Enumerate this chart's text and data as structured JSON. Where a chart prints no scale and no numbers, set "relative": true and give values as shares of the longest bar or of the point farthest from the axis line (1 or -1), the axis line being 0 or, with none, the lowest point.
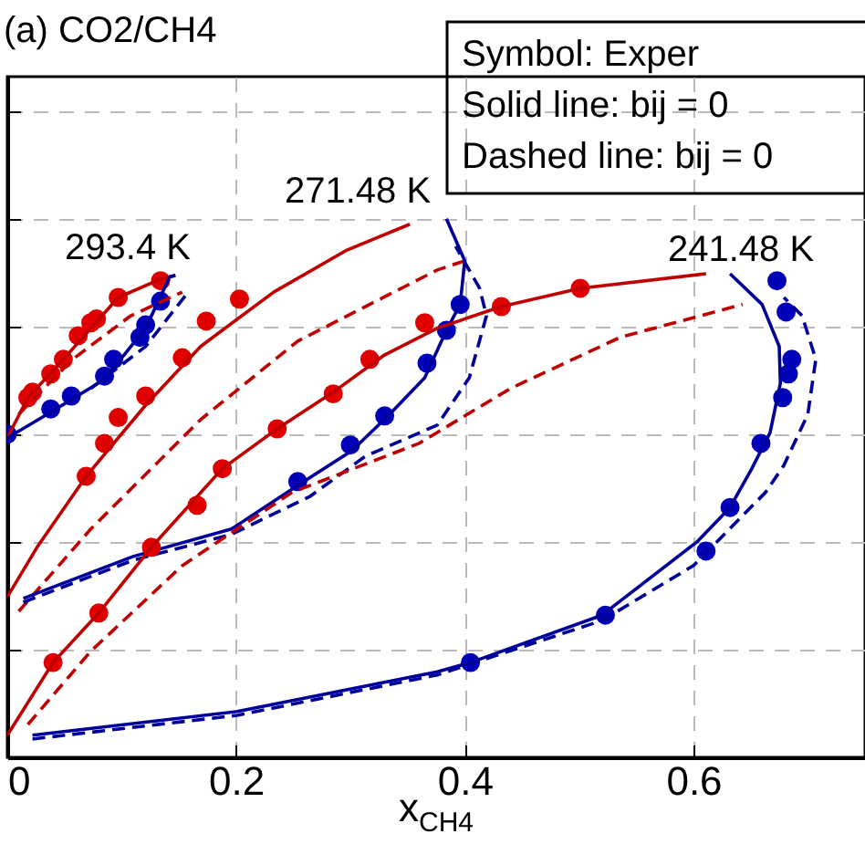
{
  "chart_data": {
    "type": "line",
    "title": "(a) CO2/CH4",
    "xlabel": "x$_{CH4}$",
    "relative": true,
    "grid": true,
    "tick_labels": "x",
    "xlim": [
      0,
      0.75
    ],
    "xticks": [
      0,
      0.2,
      0.4,
      0.6
    ],
    "annotations": [
      "Symbol: Exper",
      "Solid line: bij = 0",
      "Dashed line: bij = 0",
      "293.4 K",
      "271.48 K",
      "241.48 K"
    ],
    "series": [
      {
        "type": "scatter",
        "color": "#e00000",
        "x": [
          0.018,
          0.022,
          0.038,
          0.049,
          0.062,
          0.073,
          0.078,
          0.097,
          0.134
        ],
        "values": [
          0.668,
          0.678,
          0.712,
          0.739,
          0.783,
          0.807,
          0.814,
          0.854,
          0.885
        ]
      },
      {
        "type": "scatter",
        "color": "#0000b8",
        "x": [
          0,
          0.038,
          0.056,
          0.085,
          0.093,
          0.116,
          0.121,
          0.134
        ],
        "values": [
          0.6,
          0.647,
          0.671,
          0.708,
          0.739,
          0.78,
          0.803,
          0.847
        ]
      },
      {
        "line_style": "solid",
        "color": "#c00000",
        "x": [
          0,
          0.018,
          0.049,
          0.097,
          0.134,
          0.147
        ],
        "values": [
          0.593,
          0.668,
          0.739,
          0.854,
          0.888,
          0.895
        ]
      },
      {
        "line_style": "solid",
        "color": "#00009a",
        "x": [
          0,
          0.038,
          0.085,
          0.121,
          0.142,
          0.147
        ],
        "values": [
          0.593,
          0.641,
          0.702,
          0.797,
          0.892,
          0.895
        ]
      },
      {
        "line_style": "dashed",
        "color": "#c00000",
        "x": [
          0.01,
          0.057,
          0.108,
          0.153
        ],
        "values": [
          0.637,
          0.739,
          0.82,
          0.864
        ]
      },
      {
        "line_style": "dashed",
        "color": "#00009a",
        "x": [
          0.073,
          0.121,
          0.156
        ],
        "values": [
          0.685,
          0.763,
          0.858
        ]
      },
      {
        "type": "scatter",
        "color": "#e00000",
        "x": [
          0.069,
          0.085,
          0.097,
          0.121,
          0.153,
          0.174,
          0.203
        ],
        "values": [
          0.522,
          0.583,
          0.631,
          0.671,
          0.742,
          0.81,
          0.851
        ]
      },
      {
        "type": "scatter",
        "color": "#0000b8",
        "x": [
          0.254,
          0.3,
          0.33,
          0.367,
          0.384,
          0.396
        ],
        "values": [
          0.512,
          0.58,
          0.634,
          0.732,
          0.793,
          0.841
        ]
      },
      {
        "line_style": "solid",
        "color": "#c00000",
        "x": [
          0,
          0.026,
          0.069,
          0.121,
          0.169,
          0.233,
          0.297,
          0.352
        ],
        "values": [
          0.298,
          0.39,
          0.522,
          0.654,
          0.763,
          0.864,
          0.942,
          0.99
        ]
      },
      {
        "line_style": "dashed",
        "color": "#c00000",
        "x": [
          0.01,
          0.073,
          0.169,
          0.254,
          0.376,
          0.4
        ],
        "values": [
          0.271,
          0.424,
          0.627,
          0.773,
          0.905,
          0.922
        ]
      },
      {
        "line_style": "solid",
        "color": "#00009a",
        "x": [
          0.014,
          0.11,
          0.196,
          0.254,
          0.301,
          0.333,
          0.365,
          0.384,
          0.396,
          0.4,
          0.384
        ],
        "values": [
          0.295,
          0.373,
          0.424,
          0.505,
          0.569,
          0.634,
          0.705,
          0.793,
          0.841,
          0.922,
          1
        ]
      },
      {
        "line_style": "dashed",
        "color": "#00009a",
        "x": [
          0.014,
          0.11,
          0.196,
          0.265,
          0.313,
          0.376,
          0.404,
          0.419,
          0.413,
          0.392
        ],
        "values": [
          0.288,
          0.366,
          0.414,
          0.485,
          0.559,
          0.617,
          0.705,
          0.82,
          0.871,
          0.949
        ]
      },
      {
        "type": "scatter",
        "color": "#e00000",
        "x": [
          0.04,
          0.08,
          0.126,
          0.166,
          0.188,
          0.236,
          0.285,
          0.317,
          0.365,
          0.432,
          0.501
        ],
        "values": [
          0.176,
          0.268,
          0.39,
          0.468,
          0.536,
          0.61,
          0.675,
          0.739,
          0.807,
          0.837,
          0.871
        ]
      },
      {
        "type": "scatter",
        "color": "#0000b8",
        "x": [
          0.405,
          0.523,
          0.611,
          0.632,
          0.659,
          0.678,
          0.683,
          0.686,
          0.681,
          0.673
        ],
        "values": [
          0.176,
          0.264,
          0.383,
          0.464,
          0.583,
          0.668,
          0.712,
          0.739,
          0.827,
          0.885
        ]
      },
      {
        "line_style": "solid",
        "color": "#c00000",
        "x": [
          0,
          0.04,
          0.08,
          0.126,
          0.188,
          0.236,
          0.285,
          0.329,
          0.376,
          0.432,
          0.501,
          0.611
        ],
        "values": [
          0.041,
          0.176,
          0.268,
          0.39,
          0.536,
          0.61,
          0.678,
          0.746,
          0.797,
          0.837,
          0.871,
          0.898
        ]
      },
      {
        "line_style": "dashed",
        "color": "#c00000",
        "x": [
          0.018,
          0.073,
          0.153,
          0.249,
          0.36,
          0.44,
          0.536,
          0.643
        ],
        "values": [
          0.061,
          0.197,
          0.356,
          0.492,
          0.583,
          0.685,
          0.78,
          0.841
        ]
      },
      {
        "line_style": "solid",
        "color": "#00009a",
        "x": [
          0.022,
          0.201,
          0.376,
          0.405,
          0.52,
          0.603,
          0.632,
          0.651,
          0.667,
          0.676,
          0.675,
          0.66,
          0.632
        ],
        "values": [
          0.041,
          0.085,
          0.159,
          0.176,
          0.264,
          0.4,
          0.464,
          0.536,
          0.603,
          0.695,
          0.763,
          0.841,
          0.898
        ]
      },
      {
        "line_style": "dashed",
        "color": "#00009a",
        "x": [
          0.022,
          0.201,
          0.376,
          0.52,
          0.6,
          0.663,
          0.679,
          0.7,
          0.707,
          0.695,
          0.679
        ],
        "values": [
          0.034,
          0.078,
          0.153,
          0.254,
          0.356,
          0.492,
          0.542,
          0.637,
          0.739,
          0.82,
          0.854
        ]
      }
    ]
  }
}
